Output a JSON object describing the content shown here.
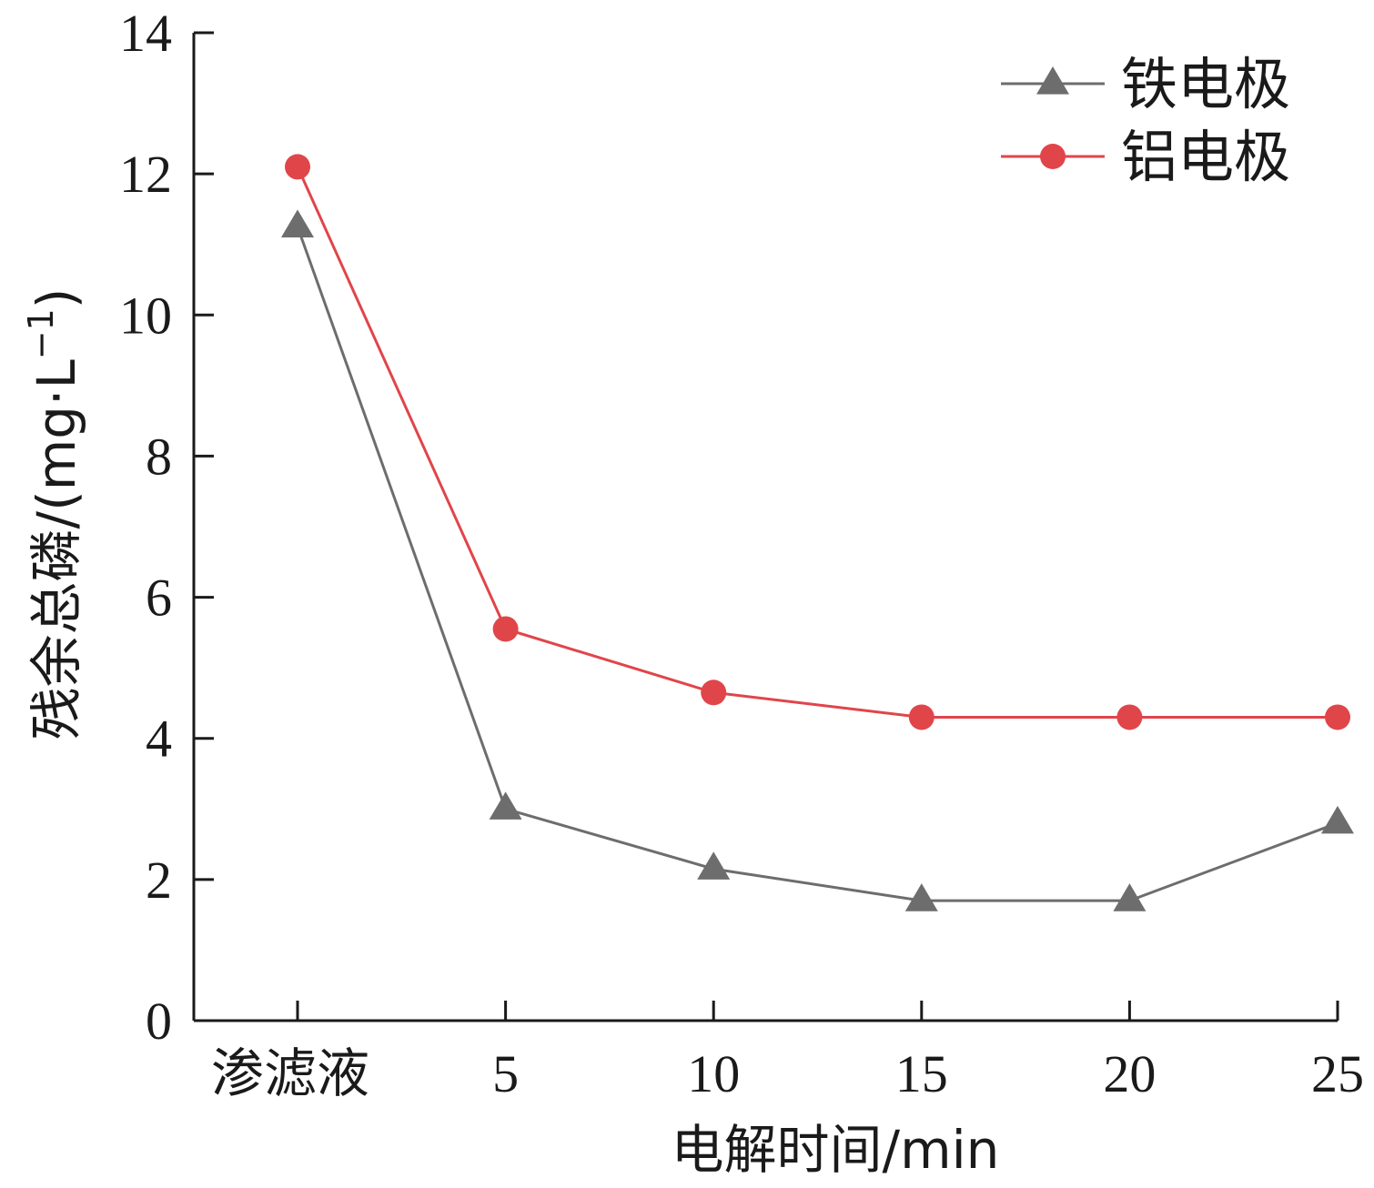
{
  "chart_data": {
    "type": "line",
    "categories": [
      "渗滤液",
      "5",
      "10",
      "15",
      "20",
      "25"
    ],
    "y_ticks": [
      "0",
      "2",
      "4",
      "6",
      "8",
      "10",
      "12",
      "14"
    ],
    "ylim": [
      0,
      14
    ],
    "xlabel": "电解时间/min",
    "ylabel": "残余总磷/(mg·L",
    "ylabel_sup": "−1",
    "ylabel_close": ")",
    "grid": false,
    "legend_position": "top-right",
    "series": [
      {
        "name": "铁电极",
        "marker": "triangle",
        "color": "#6d6d6d",
        "values": [
          11.25,
          3.0,
          2.15,
          1.7,
          1.7,
          2.8
        ]
      },
      {
        "name": "铝电极",
        "marker": "circle",
        "color": "#e0454a",
        "values": [
          12.1,
          5.55,
          4.65,
          4.3,
          4.3,
          4.3
        ]
      }
    ]
  }
}
